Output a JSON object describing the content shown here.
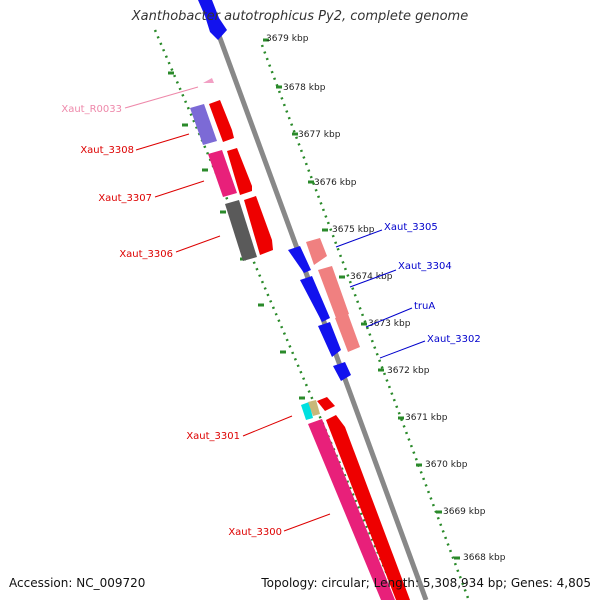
{
  "title": "Xanthobacter autotrophicus Py2, complete genome",
  "accession": "Accession: NC_009720",
  "topology": "Topology: circular; Length: 5,308,934 bp; Genes: 4,805",
  "ticks": [
    "3679 kbp",
    "3678 kbp",
    "3677 kbp",
    "3676 kbp",
    "3675 kbp",
    "3674 kbp",
    "3673 kbp",
    "3672 kbp",
    "3671 kbp",
    "3670 kbp",
    "3669 kbp",
    "3668 kbp"
  ],
  "labels": {
    "Xaut_R0033": "Xaut_R0033",
    "Xaut_3308": "Xaut_3308",
    "Xaut_3307": "Xaut_3307",
    "Xaut_3306": "Xaut_3306",
    "Xaut_3301": "Xaut_3301",
    "Xaut_3300": "Xaut_3300",
    "Xaut_3305": "Xaut_3305",
    "Xaut_3304": "Xaut_3304",
    "truA": "truA",
    "Xaut_3302": "Xaut_3302"
  },
  "colors": {
    "forward_label": "#dd0000",
    "reverse_label": "#0000cc",
    "rna_label": "#ee88aa",
    "tick": "#2a8a2a",
    "backbone": "#888888"
  }
}
